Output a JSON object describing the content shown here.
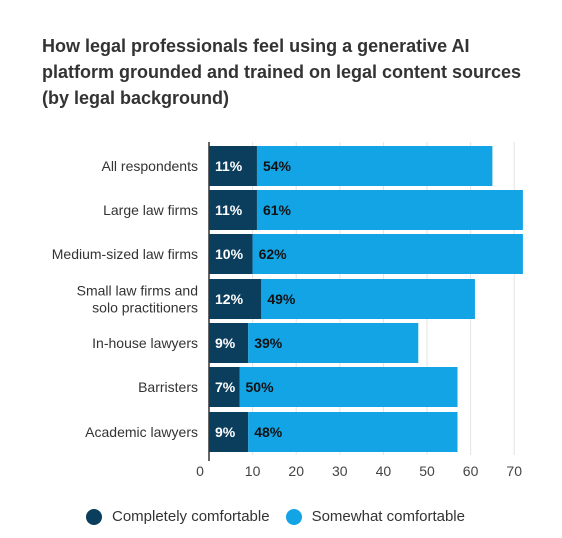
{
  "chart_data": {
    "type": "bar",
    "orientation": "horizontal",
    "stacked": true,
    "title": "How legal professionals feel using a generative AI platform grounded and trained on legal content sources (by legal background)",
    "categories": [
      "All respondents",
      "Large law firms",
      "Medium-sized law firms",
      "Small law firms and solo practitioners",
      "In-house lawyers",
      "Barristers",
      "Academic lawyers"
    ],
    "series": [
      {
        "name": "Completely comfortable",
        "color": "#0b3d5c",
        "values": [
          11,
          11,
          10,
          12,
          9,
          7,
          9
        ],
        "labels": [
          "11%",
          "11%",
          "10%",
          "12%",
          "9%",
          "7%",
          "9%"
        ]
      },
      {
        "name": "Somewhat comfortable",
        "color": "#13a4e6",
        "values": [
          54,
          61,
          62,
          49,
          39,
          50,
          48
        ],
        "labels": [
          "54%",
          "61%",
          "62%",
          "49%",
          "39%",
          "50%",
          "48%"
        ]
      }
    ],
    "xlim": [
      0,
      72
    ],
    "xticks": [
      0,
      10,
      20,
      30,
      40,
      50,
      60,
      70
    ],
    "grid": true,
    "legend_position": "bottom"
  }
}
